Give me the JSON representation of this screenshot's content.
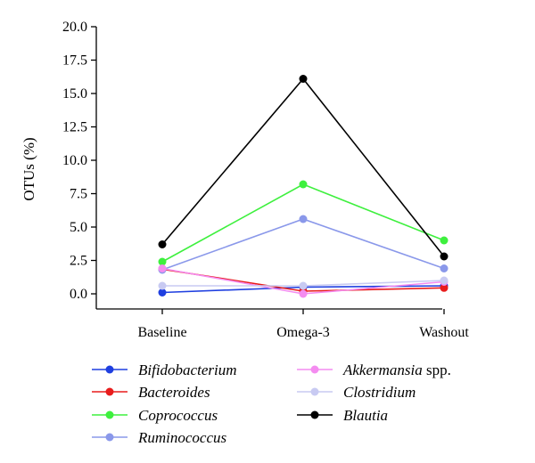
{
  "chart_data": {
    "type": "line",
    "title": "",
    "xlabel": "",
    "ylabel": "OTUs (%)",
    "categories": [
      "Baseline",
      "Omega-3",
      "Washout"
    ],
    "ylim": [
      0,
      20
    ],
    "yticks": [
      "0.0",
      "2.5",
      "5.0",
      "7.5",
      "10.0",
      "12.5",
      "15.0",
      "17.5",
      "20.0"
    ],
    "grid": false,
    "legend_position": "bottom",
    "series": [
      {
        "name": "Bifidobacterium",
        "name_suffix": "",
        "color": "#1f3fe0",
        "values": [
          0.1,
          0.5,
          0.6
        ]
      },
      {
        "name": "Bacteroides",
        "name_suffix": "",
        "color": "#e81c1c",
        "values": [
          1.85,
          0.2,
          0.45
        ]
      },
      {
        "name": "Coprococcus",
        "name_suffix": "",
        "color": "#3ef03e",
        "values": [
          2.4,
          8.2,
          4.0
        ]
      },
      {
        "name": "Ruminococcus",
        "name_suffix": "",
        "color": "#8a98ea",
        "values": [
          1.8,
          5.6,
          1.9
        ]
      },
      {
        "name": "Akkermansia",
        "name_suffix": " spp.",
        "color": "#f48cf0",
        "values": [
          1.9,
          0.0,
          0.9
        ]
      },
      {
        "name": "Clostridium",
        "name_suffix": "",
        "color": "#c8caf2",
        "values": [
          0.6,
          0.6,
          1.0
        ]
      },
      {
        "name": "Blautia",
        "name_suffix": "",
        "color": "#000000",
        "values": [
          3.7,
          16.1,
          2.8
        ]
      }
    ]
  }
}
